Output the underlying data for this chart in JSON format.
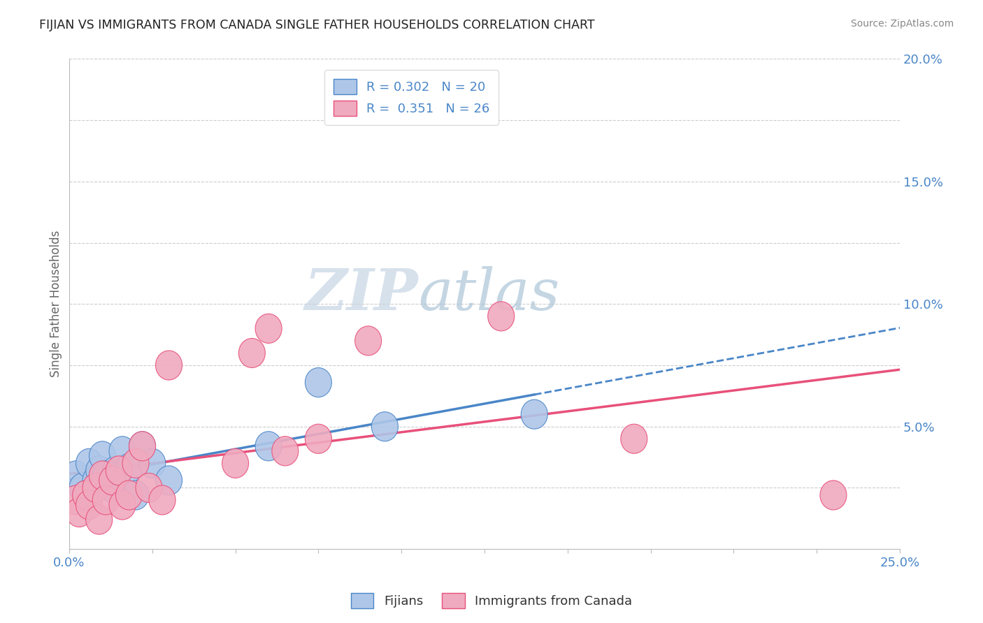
{
  "title": "FIJIAN VS IMMIGRANTS FROM CANADA SINGLE FATHER HOUSEHOLDS CORRELATION CHART",
  "source": "Source: ZipAtlas.com",
  "ylabel": "Single Father Households",
  "xlim": [
    0.0,
    0.25
  ],
  "ylim": [
    0.0,
    0.2
  ],
  "fijians_x": [
    0.002,
    0.004,
    0.005,
    0.006,
    0.008,
    0.009,
    0.01,
    0.011,
    0.013,
    0.014,
    0.016,
    0.018,
    0.02,
    0.022,
    0.025,
    0.03,
    0.06,
    0.075,
    0.095,
    0.14
  ],
  "fijians_y": [
    0.03,
    0.025,
    0.022,
    0.035,
    0.028,
    0.032,
    0.038,
    0.03,
    0.025,
    0.032,
    0.04,
    0.033,
    0.022,
    0.042,
    0.035,
    0.028,
    0.042,
    0.068,
    0.05,
    0.055
  ],
  "canada_x": [
    0.002,
    0.003,
    0.005,
    0.006,
    0.008,
    0.009,
    0.01,
    0.011,
    0.013,
    0.015,
    0.016,
    0.018,
    0.02,
    0.022,
    0.024,
    0.028,
    0.03,
    0.05,
    0.055,
    0.06,
    0.065,
    0.075,
    0.09,
    0.13,
    0.17,
    0.23
  ],
  "canada_y": [
    0.02,
    0.015,
    0.022,
    0.018,
    0.025,
    0.012,
    0.03,
    0.02,
    0.028,
    0.032,
    0.018,
    0.022,
    0.035,
    0.042,
    0.025,
    0.02,
    0.075,
    0.035,
    0.08,
    0.09,
    0.04,
    0.045,
    0.085,
    0.095,
    0.045,
    0.022
  ],
  "fijian_color": "#aec6e8",
  "canada_color": "#f0aabf",
  "fijian_line_color": "#4a86c8",
  "canada_line_color": "#e8507a",
  "fijian_R": "0.302",
  "fijian_N": "20",
  "canada_R": "0.351",
  "canada_N": "26",
  "watermark_zip": "ZIP",
  "watermark_atlas": "atlas",
  "watermark_zip_color": "#c5d5e5",
  "watermark_atlas_color": "#adc5d8",
  "legend_label_fijian": "Fijians",
  "legend_label_canada": "Immigrants from Canada",
  "background_color": "#ffffff",
  "grid_color": "#cccccc"
}
